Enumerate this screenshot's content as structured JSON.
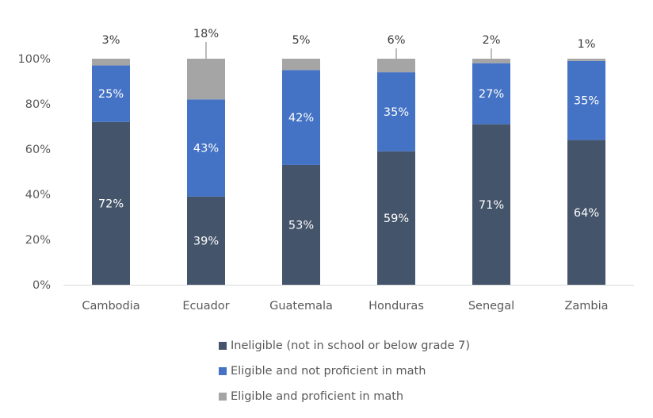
{
  "chart_data": {
    "type": "bar",
    "stacked": true,
    "categories": [
      "Cambodia",
      "Ecuador",
      "Guatemala",
      "Honduras",
      "Senegal",
      "Zambia"
    ],
    "series": [
      {
        "name": "Ineligible (not in school or below grade 7)",
        "color": "#44546A",
        "values": [
          72,
          39,
          53,
          59,
          71,
          64
        ],
        "labels": [
          "72%",
          "39%",
          "53%",
          "59%",
          "71%",
          "64%"
        ]
      },
      {
        "name": "Eligible and not proficient in math",
        "color": "#4472C4",
        "values": [
          25,
          43,
          42,
          35,
          27,
          35
        ],
        "labels": [
          "25%",
          "43%",
          "42%",
          "35%",
          "27%",
          "35%"
        ]
      },
      {
        "name": "Eligible and proficient in math",
        "color": "#A5A5A5",
        "values": [
          3,
          18,
          5,
          6,
          2,
          1
        ],
        "labels": [
          "3%",
          "18%",
          "5%",
          "6%",
          "2%",
          "1%"
        ]
      }
    ],
    "yticks": [
      "0%",
      "20%",
      "40%",
      "60%",
      "80%",
      "100%"
    ],
    "ylim": [
      0,
      100
    ],
    "grid": false,
    "legend": "bottom",
    "xlabel": "",
    "ylabel": ""
  }
}
